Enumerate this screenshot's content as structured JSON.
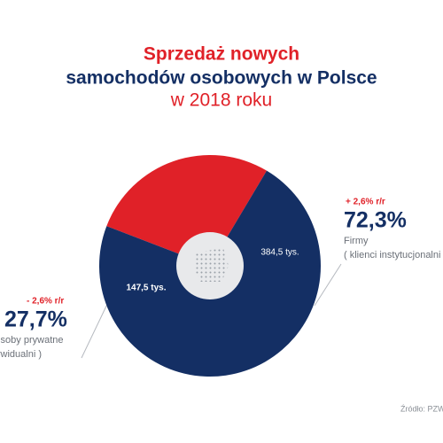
{
  "chart_data": {
    "type": "pie",
    "title_lines": [
      "Sprzedaż nowych",
      "samochodów osobowych w Polsce",
      "w 2018 roku"
    ],
    "categories": [
      "Osoby prywatne",
      "Firmy"
    ],
    "category_notes": [
      "( klienci indywidualni )",
      "( klienci instytucjonalni )"
    ],
    "values": [
      147.5,
      384.5
    ],
    "value_labels": [
      "147,5 tys.",
      "384,5 tys."
    ],
    "shares": [
      27.7,
      72.3
    ],
    "share_labels": [
      "27,7%",
      "72,3%"
    ],
    "changes": [
      -2.6,
      2.6
    ],
    "change_labels": [
      "- 2,6% r/r",
      "+ 2,6% r/r"
    ],
    "colors": [
      "#e02128",
      "#142f64"
    ],
    "source": "Źródło: PZW"
  }
}
